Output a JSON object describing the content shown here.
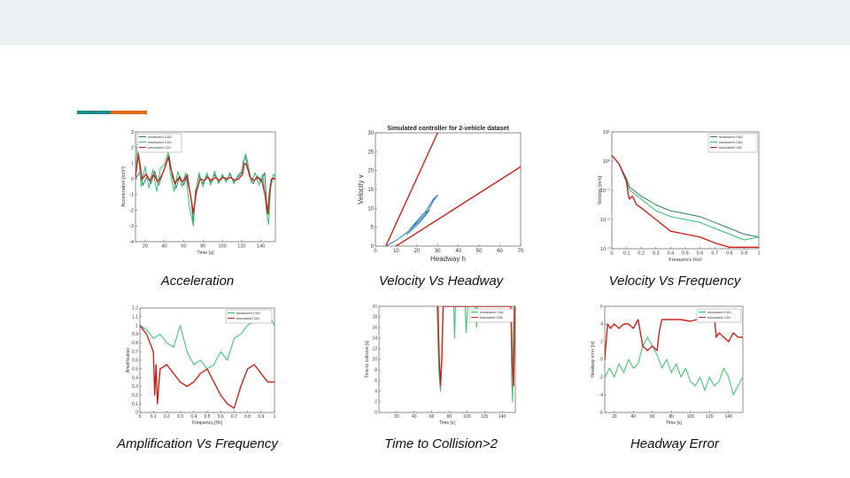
{
  "slide": {
    "colors": {
      "top_band": "#eceeef",
      "accent_teal": "#1f8a8a",
      "accent_orange": "#e06a1a"
    },
    "captions": {
      "acceleration": "Acceleration",
      "velocity_headway": "Velocity Vs Headway",
      "velocity_frequency": "Velocity Vs Frequency",
      "amplification_frequency": "Amplification Vs Frequency",
      "ttc": "Time to Collision>2",
      "headway_error": "Headway Error"
    }
  },
  "chart_data": [
    {
      "id": "acc",
      "type": "line",
      "xlabel": "Time [s]",
      "ylabel": "Acceleration [m/s²]",
      "xlim": [
        10,
        155
      ],
      "ylim": [
        -4,
        3
      ],
      "xticks": [
        20,
        40,
        60,
        80,
        100,
        120,
        140
      ],
      "yticks": [
        -4,
        -3,
        -2,
        -1,
        0,
        1,
        2,
        3
      ],
      "legend": {
        "position": "top-left",
        "entries": [
          "measured CAV",
          "measured CAV",
          "simulated CAV"
        ]
      },
      "series": [
        {
          "name": "measured CAV",
          "color": "#2e7d6b",
          "x": [
            10,
            14,
            18,
            22,
            26,
            30,
            34,
            38,
            42,
            45,
            48,
            52,
            56,
            60,
            64,
            68,
            70,
            72,
            76,
            80,
            84,
            88,
            92,
            96,
            100,
            104,
            108,
            112,
            116,
            120,
            122,
            124,
            128,
            132,
            136,
            140,
            144,
            146,
            148,
            150,
            152,
            155
          ],
          "y": [
            0,
            0.4,
            -0.4,
            0.2,
            -0.3,
            0.5,
            -0.4,
            0.3,
            1,
            1.5,
            0.2,
            -0.6,
            0.2,
            -0.4,
            0.3,
            -1.5,
            -2.8,
            -0.8,
            0.2,
            -0.3,
            0.2,
            -0.2,
            0.3,
            -0.2,
            0.2,
            -0.1,
            0.3,
            -0.2,
            0.1,
            0.4,
            1.2,
            1.4,
            0.2,
            -0.3,
            0.2,
            -0.2,
            0.4,
            -1.6,
            -2.3,
            -0.4,
            0.1,
            0
          ]
        },
        {
          "name": "measured CAV",
          "color": "#33c06a",
          "x": [
            10,
            12,
            16,
            20,
            24,
            28,
            32,
            36,
            40,
            44,
            46,
            50,
            54,
            58,
            62,
            66,
            70,
            72,
            76,
            80,
            84,
            88,
            92,
            96,
            100,
            104,
            108,
            112,
            116,
            120,
            124,
            126,
            130,
            134,
            138,
            142,
            146,
            148,
            150,
            153,
            155
          ],
          "y": [
            0.2,
            2.2,
            -0.5,
            0.8,
            -0.6,
            0.6,
            -0.8,
            0.7,
            0.9,
            1.7,
            0.4,
            -0.8,
            0.5,
            -0.5,
            0.4,
            -1.8,
            -3,
            -1,
            0.4,
            -0.5,
            0.4,
            -0.4,
            0.5,
            -0.3,
            0.3,
            -0.2,
            0.4,
            -0.3,
            0.2,
            0.5,
            1.6,
            1.2,
            -0.2,
            0.4,
            -0.4,
            0.3,
            -2.2,
            -2.9,
            -0.6,
            0.3,
            0.1
          ]
        },
        {
          "name": "simulated CAV",
          "color": "#c8241e",
          "x": [
            10,
            13,
            17,
            21,
            25,
            29,
            33,
            37,
            41,
            44,
            47,
            51,
            55,
            59,
            63,
            67,
            70,
            73,
            77,
            81,
            85,
            89,
            93,
            97,
            101,
            105,
            109,
            113,
            117,
            121,
            123,
            125,
            129,
            133,
            137,
            141,
            145,
            147,
            149,
            151,
            155
          ],
          "y": [
            0.1,
            1.6,
            0,
            0.3,
            -0.1,
            0.3,
            -0.2,
            0.2,
            0.8,
            1.4,
            0.6,
            -0.3,
            0.1,
            -0.2,
            0.2,
            -1,
            -2.2,
            -0.9,
            0,
            -0.1,
            0.1,
            -0.1,
            0.1,
            -0.1,
            0.1,
            0,
            0.1,
            -0.1,
            0,
            0.3,
            1,
            0.9,
            0.1,
            -0.1,
            0.1,
            -0.1,
            -1.2,
            -2.2,
            -0.8,
            0,
            0
          ]
        }
      ]
    },
    {
      "id": "vh",
      "type": "line",
      "title": "Simulated controller for 2-vehicle dataset",
      "xlabel": "Headway h",
      "ylabel": "Velocity v",
      "xlim": [
        0,
        70
      ],
      "ylim": [
        0,
        30
      ],
      "xticks": [
        0,
        10,
        20,
        30,
        40,
        50,
        60,
        70
      ],
      "yticks": [
        0,
        5,
        10,
        15,
        20,
        25,
        30
      ],
      "series": [
        {
          "name": "",
          "color": "#c8241e",
          "x": [
            5,
            30
          ],
          "y": [
            0,
            30
          ]
        },
        {
          "name": "",
          "color": "#c8241e",
          "x": [
            10,
            70
          ],
          "y": [
            0,
            21
          ]
        },
        {
          "name": "",
          "color": "#2a7fb3",
          "x": [
            5,
            10,
            15,
            20,
            25,
            28,
            30,
            28,
            24,
            20,
            18,
            16,
            19,
            23,
            26,
            24,
            20,
            17,
            15
          ],
          "y": [
            0,
            1.5,
            3.5,
            6,
            9,
            12,
            13.5,
            12.5,
            9,
            6.5,
            5,
            4,
            6,
            8.5,
            9.5,
            8,
            5.5,
            4,
            3
          ]
        }
      ]
    },
    {
      "id": "vf",
      "type": "line",
      "xlabel": "Frequency [Hz]",
      "ylabel": "Velocity [m/s]",
      "xlim": [
        0,
        1
      ],
      "ylim": [
        -3,
        1
      ],
      "yscale": "log",
      "xticks": [
        0,
        0.1,
        0.2,
        0.3,
        0.4,
        0.5,
        0.6,
        0.7,
        0.8,
        0.9,
        1
      ],
      "yticks": [
        "10⁻³",
        "10⁻²",
        "10⁻¹",
        "10⁰",
        "10¹"
      ],
      "legend": {
        "position": "top-right",
        "entries": [
          "measured CAV",
          "measured CAV",
          "simulated CAV"
        ]
      },
      "series": [
        {
          "name": "measured CAV",
          "color": "#2e7d6b",
          "x": [
            0,
            0.05,
            0.1,
            0.12,
            0.15,
            0.2,
            0.3,
            0.4,
            0.5,
            0.6,
            0.7,
            0.8,
            0.9,
            1
          ],
          "y": [
            0.2,
            -0.1,
            -0.6,
            -0.9,
            -1.0,
            -1.2,
            -1.5,
            -1.7,
            -1.8,
            -1.9,
            -2.1,
            -2.3,
            -2.5,
            -2.6
          ]
        },
        {
          "name": "measured CAV",
          "color": "#33c06a",
          "x": [
            0,
            0.05,
            0.1,
            0.12,
            0.15,
            0.2,
            0.3,
            0.4,
            0.5,
            0.6,
            0.7,
            0.8,
            0.9,
            1
          ],
          "y": [
            0.2,
            -0.1,
            -0.7,
            -1.0,
            -1.1,
            -1.3,
            -1.7,
            -1.9,
            -2.0,
            -2.1,
            -2.3,
            -2.5,
            -2.7,
            -2.6
          ]
        },
        {
          "name": "simulated CAV",
          "color": "#c8241e",
          "x": [
            0,
            0.05,
            0.1,
            0.11,
            0.12,
            0.14,
            0.17,
            0.2,
            0.3,
            0.4,
            0.5,
            0.6,
            0.7,
            0.8,
            0.9,
            1
          ],
          "y": [
            0.2,
            -0.1,
            -0.7,
            -1.1,
            -1.3,
            -1.2,
            -1.5,
            -1.6,
            -2.0,
            -2.4,
            -2.5,
            -2.6,
            -2.8,
            -2.95,
            -2.95,
            -2.95
          ]
        }
      ]
    },
    {
      "id": "af",
      "type": "line",
      "xlabel": "Frequency [Hz]",
      "ylabel": "Amplification",
      "xlim": [
        0,
        1
      ],
      "ylim": [
        0,
        1.2
      ],
      "xticks": [
        0,
        0.1,
        0.2,
        0.3,
        0.4,
        0.5,
        0.6,
        0.7,
        0.8,
        0.9,
        1
      ],
      "yticks": [
        0,
        0.1,
        0.2,
        0.3,
        0.4,
        0.5,
        0.6,
        0.7,
        0.8,
        0.9,
        1,
        1.1,
        1.2
      ],
      "legend": {
        "position": "top-right",
        "entries": [
          "measured CAV",
          "simulated CAV"
        ]
      },
      "series": [
        {
          "name": "measured CAV",
          "color": "#33c06a",
          "x": [
            0,
            0.05,
            0.1,
            0.15,
            0.2,
            0.25,
            0.3,
            0.35,
            0.4,
            0.45,
            0.5,
            0.55,
            0.6,
            0.65,
            0.7,
            0.75,
            0.8,
            0.85,
            0.9,
            0.95,
            1
          ],
          "y": [
            1.0,
            0.95,
            0.85,
            0.9,
            0.8,
            0.75,
            1.0,
            0.7,
            0.55,
            0.6,
            0.5,
            0.55,
            0.7,
            0.6,
            0.85,
            0.9,
            1.0,
            1.05,
            1.1,
            1.15,
            1.0
          ]
        },
        {
          "name": "simulated CAV",
          "color": "#c8241e",
          "x": [
            0,
            0.05,
            0.1,
            0.11,
            0.12,
            0.13,
            0.15,
            0.2,
            0.25,
            0.3,
            0.35,
            0.4,
            0.45,
            0.5,
            0.55,
            0.6,
            0.65,
            0.7,
            0.75,
            0.8,
            0.85,
            0.9,
            0.95,
            1
          ],
          "y": [
            1.0,
            0.9,
            0.7,
            0.2,
            0.55,
            0.1,
            0.5,
            0.55,
            0.45,
            0.35,
            0.3,
            0.35,
            0.45,
            0.5,
            0.35,
            0.2,
            0.1,
            0.05,
            0.3,
            0.5,
            0.55,
            0.45,
            0.35,
            0.35
          ]
        }
      ]
    },
    {
      "id": "ttc",
      "type": "line",
      "xlabel": "Time [s]",
      "ylabel": "Time to collision [s]",
      "xlim": [
        0,
        155
      ],
      "ylim": [
        0,
        20
      ],
      "xticks": [
        20,
        40,
        60,
        80,
        100,
        120,
        140
      ],
      "yticks": [
        0,
        2,
        4,
        6,
        8,
        10,
        12,
        14,
        16,
        18,
        20
      ],
      "legend": {
        "position": "top-right",
        "entries": [
          "measured CAV",
          "simulated CAV"
        ]
      },
      "series": [
        {
          "name": "measured CAV",
          "color": "#33c06a",
          "x": [
            66,
            68,
            70,
            71,
            73,
            85,
            86,
            87,
            98,
            99,
            100,
            101,
            110,
            111,
            112,
            150,
            151,
            152,
            153
          ],
          "y": [
            20,
            8,
            4,
            8,
            20,
            20,
            14,
            20,
            20,
            15,
            18,
            20,
            20,
            16,
            20,
            20,
            6,
            2,
            20
          ]
        },
        {
          "name": "simulated CAV",
          "color": "#c8241e",
          "x": [
            67,
            68.5,
            70,
            71.5,
            73,
            150,
            151.5,
            153,
            154.5
          ],
          "y": [
            20,
            10,
            5,
            10,
            20,
            20,
            9,
            5,
            20
          ]
        }
      ]
    },
    {
      "id": "he",
      "type": "line",
      "xlabel": "Time [s]",
      "ylabel": "Headway error [m]",
      "xlim": [
        10,
        155
      ],
      "ylim": [
        -6,
        6
      ],
      "xticks": [
        20,
        40,
        60,
        80,
        100,
        120,
        140
      ],
      "yticks": [
        -6,
        -4,
        -2,
        0,
        2,
        4,
        6
      ],
      "legend": {
        "position": "top-right",
        "entries": [
          "measured CAV",
          "simulated CAV"
        ]
      },
      "series": [
        {
          "name": "measured CAV",
          "color": "#33c06a",
          "x": [
            10,
            15,
            20,
            25,
            30,
            35,
            40,
            45,
            50,
            55,
            60,
            65,
            70,
            75,
            80,
            85,
            90,
            95,
            100,
            105,
            110,
            115,
            120,
            125,
            130,
            135,
            140,
            145,
            150,
            155
          ],
          "y": [
            -2,
            -1,
            -2,
            -0.5,
            -1.5,
            0,
            -1,
            -0.5,
            1.5,
            2.5,
            1.5,
            0.5,
            -1,
            0,
            -1.5,
            -0.5,
            -2,
            -1,
            -2.5,
            -3,
            -2,
            -3.5,
            -2,
            -3,
            -2.5,
            -1,
            -2,
            -4,
            -3,
            -2
          ]
        },
        {
          "name": "simulated CAV",
          "color": "#c8241e",
          "x": [
            10,
            13,
            16,
            20,
            25,
            30,
            35,
            40,
            45,
            50,
            55,
            60,
            65,
            67,
            70,
            75,
            80,
            90,
            100,
            110,
            120,
            125,
            127,
            130,
            135,
            140,
            145,
            150,
            155
          ],
          "y": [
            0,
            4,
            3.5,
            4,
            3.5,
            4,
            4,
            3.5,
            4.5,
            1.5,
            1,
            1.5,
            1,
            3,
            4.5,
            4.5,
            4.5,
            4.5,
            4.3,
            4.6,
            4.5,
            5,
            2.5,
            3,
            2.5,
            2,
            3,
            2.5,
            2.5
          ]
        }
      ]
    }
  ]
}
